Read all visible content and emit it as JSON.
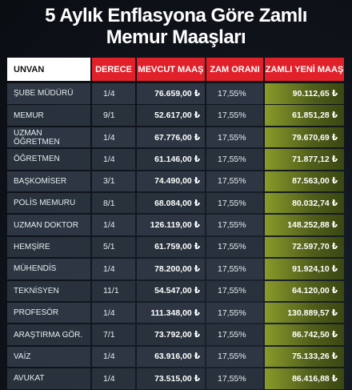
{
  "title_line1": "5 Aylık Enflasyona Göre Zamlı",
  "title_line2": "Memur Maaşları",
  "headers": {
    "unvan": "UNVAN",
    "derece": "DERECE",
    "mevcut": "MEVCUT MAAŞ",
    "zam": "ZAM ORANI",
    "yeni": "ZAMLI YENİ MAAŞ"
  },
  "colors": {
    "header_red": "#e2202a",
    "new_salary_green": "#8a9a2a"
  },
  "rows": [
    {
      "unvan": "ŞUBE MÜDÜRÜ",
      "derece": "1/4",
      "mevcut": "76.659,00 ₺",
      "zam": "17,55%",
      "yeni": "90.112,65 ₺"
    },
    {
      "unvan": "MEMUR",
      "derece": "9/1",
      "mevcut": "52.617,00 ₺",
      "zam": "17,55%",
      "yeni": "61.851,28 ₺"
    },
    {
      "unvan": "UZMAN ÖĞRETMEN",
      "derece": "1/4",
      "mevcut": "67.776,00 ₺",
      "zam": "17,55%",
      "yeni": "79.670,69 ₺"
    },
    {
      "unvan": "ÖĞRETMEN",
      "derece": "1/4",
      "mevcut": "61.146,00 ₺",
      "zam": "17,55%",
      "yeni": "71.877,12 ₺"
    },
    {
      "unvan": "BAŞKOMİSER",
      "derece": "3/1",
      "mevcut": "74.490,00 ₺",
      "zam": "17,55%",
      "yeni": "87.563,00 ₺"
    },
    {
      "unvan": "POLİS MEMURU",
      "derece": "8/1",
      "mevcut": "68.084,00 ₺",
      "zam": "17,55%",
      "yeni": "80.032,74 ₺"
    },
    {
      "unvan": "UZMAN DOKTOR",
      "derece": "1/4",
      "mevcut": "126.119,00 ₺",
      "zam": "17,55%",
      "yeni": "148.252,88 ₺"
    },
    {
      "unvan": "HEMŞİRE",
      "derece": "5/1",
      "mevcut": "61.759,00 ₺",
      "zam": "17,55%",
      "yeni": "72.597,70 ₺"
    },
    {
      "unvan": "MÜHENDİS",
      "derece": "1/4",
      "mevcut": "78.200,00 ₺",
      "zam": "17,55%",
      "yeni": "91.924,10 ₺"
    },
    {
      "unvan": "TEKNİSYEN",
      "derece": "11/1",
      "mevcut": "54.547,00 ₺",
      "zam": "17,55%",
      "yeni": "64.120,00 ₺"
    },
    {
      "unvan": "PROFESÖR",
      "derece": "1/4",
      "mevcut": "111.348,00 ₺",
      "zam": "17,55%",
      "yeni": "130.889,57 ₺"
    },
    {
      "unvan": "ARAŞTIRMA GÖR.",
      "derece": "7/1",
      "mevcut": "73.792,00 ₺",
      "zam": "17,55%",
      "yeni": "86.742,50 ₺"
    },
    {
      "unvan": "VAİZ",
      "derece": "1/4",
      "mevcut": "63.916,00 ₺",
      "zam": "17,55%",
      "yeni": "75.133,26 ₺"
    },
    {
      "unvan": "AVUKAT",
      "derece": "1/4",
      "mevcut": "73.515,00 ₺",
      "zam": "17,55%",
      "yeni": "86.416,88 ₺"
    }
  ]
}
